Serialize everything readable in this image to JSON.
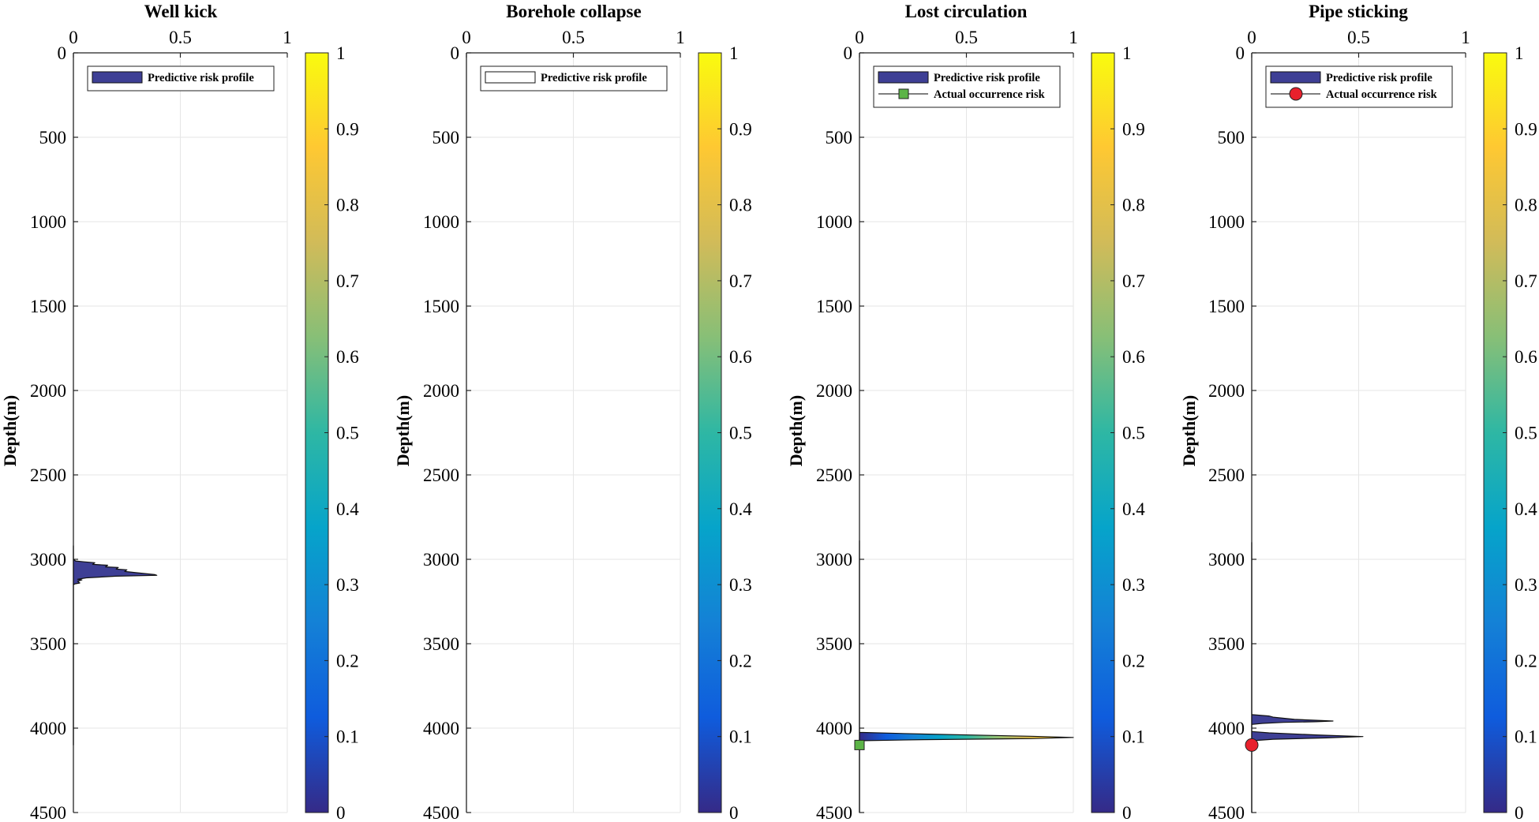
{
  "chart_data": [
    {
      "type": "area",
      "title": "Well kick",
      "xlabel": "",
      "ylabel": "Depth(m)",
      "xlim": [
        0,
        1
      ],
      "ylim": [
        0,
        4500
      ],
      "y_reversed": true,
      "x_axis_position": "top",
      "grid": true,
      "x_ticks": [
        "0",
        "0.5",
        "1"
      ],
      "y_ticks": [
        "0",
        "500",
        "1000",
        "1500",
        "2000",
        "2500",
        "3000",
        "3500",
        "4000",
        "4500"
      ],
      "colorbar": {
        "min": 0,
        "max": 1,
        "ticks": [
          "0",
          "0.1",
          "0.2",
          "0.3",
          "0.4",
          "0.5",
          "0.6",
          "0.7",
          "0.8",
          "0.9",
          "1"
        ]
      },
      "legend": {
        "position": "top",
        "entries": [
          "Predictive risk profile"
        ]
      },
      "series": [
        {
          "name": "Predictive risk profile",
          "kind": "filled-profile",
          "points": [
            [
              0,
              2920
            ],
            [
              0,
              3000
            ],
            [
              0.01,
              3010
            ],
            [
              0.05,
              3015
            ],
            [
              0.1,
              3020
            ],
            [
              0.09,
              3030
            ],
            [
              0.16,
              3035
            ],
            [
              0.15,
              3045
            ],
            [
              0.21,
              3048
            ],
            [
              0.2,
              3058
            ],
            [
              0.25,
              3062
            ],
            [
              0.24,
              3072
            ],
            [
              0.3,
              3080
            ],
            [
              0.38,
              3090
            ],
            [
              0.39,
              3095
            ],
            [
              0.2,
              3100
            ],
            [
              0.06,
              3110
            ],
            [
              0.02,
              3118
            ],
            [
              0.04,
              3122
            ],
            [
              0.02,
              3130
            ],
            [
              0.03,
              3140
            ],
            [
              0.01,
              3145
            ],
            [
              0,
              3150
            ],
            [
              0,
              4100
            ]
          ]
        }
      ]
    },
    {
      "type": "area",
      "title": "Borehole collapse",
      "xlabel": "",
      "ylabel": "Depth(m)",
      "xlim": [
        0,
        1
      ],
      "ylim": [
        0,
        4500
      ],
      "y_reversed": true,
      "x_axis_position": "top",
      "grid": true,
      "x_ticks": [
        "0",
        "0.5",
        "1"
      ],
      "y_ticks": [
        "0",
        "500",
        "1000",
        "1500",
        "2000",
        "2500",
        "3000",
        "3500",
        "4000",
        "4500"
      ],
      "colorbar": {
        "min": 0,
        "max": 1,
        "ticks": [
          "0",
          "0.1",
          "0.2",
          "0.3",
          "0.4",
          "0.5",
          "0.6",
          "0.7",
          "0.8",
          "0.9",
          "1"
        ]
      },
      "legend": {
        "position": "top",
        "entries": [
          "Predictive risk profile"
        ]
      },
      "series": [
        {
          "name": "Predictive risk profile",
          "kind": "filled-profile",
          "points": []
        }
      ]
    },
    {
      "type": "area",
      "title": "Lost circulation",
      "xlabel": "",
      "ylabel": "Depth(m)",
      "xlim": [
        0,
        1
      ],
      "ylim": [
        0,
        4500
      ],
      "y_reversed": true,
      "x_axis_position": "top",
      "grid": true,
      "x_ticks": [
        "0",
        "0.5",
        "1"
      ],
      "y_ticks": [
        "0",
        "500",
        "1000",
        "1500",
        "2000",
        "2500",
        "3000",
        "3500",
        "4000",
        "4500"
      ],
      "colorbar": {
        "min": 0,
        "max": 1,
        "ticks": [
          "0",
          "0.1",
          "0.2",
          "0.3",
          "0.4",
          "0.5",
          "0.6",
          "0.7",
          "0.8",
          "0.9",
          "1"
        ]
      },
      "legend": {
        "position": "top",
        "entries": [
          "Predictive risk profile",
          "Actual occurrence risk"
        ]
      },
      "series": [
        {
          "name": "Predictive risk profile",
          "kind": "filled-profile",
          "points": [
            [
              0,
              2890
            ],
            [
              0,
              4025
            ],
            [
              0.3,
              4035
            ],
            [
              0.8,
              4048
            ],
            [
              1.0,
              4055
            ],
            [
              0.8,
              4062
            ],
            [
              0.3,
              4068
            ],
            [
              0,
              4075
            ],
            [
              0,
              4500
            ]
          ]
        },
        {
          "name": "Actual occurrence risk",
          "kind": "marker",
          "marker": "square",
          "color": "#5cb447",
          "points": [
            [
              0,
              4100
            ]
          ]
        }
      ]
    },
    {
      "type": "area",
      "title": "Pipe sticking",
      "xlabel": "",
      "ylabel": "Depth(m)",
      "xlim": [
        0,
        1
      ],
      "ylim": [
        0,
        4500
      ],
      "y_reversed": true,
      "x_axis_position": "top",
      "grid": true,
      "x_ticks": [
        "0",
        "0.5",
        "1"
      ],
      "y_ticks": [
        "0",
        "500",
        "1000",
        "1500",
        "2000",
        "2500",
        "3000",
        "3500",
        "4000",
        "4500"
      ],
      "colorbar": {
        "min": 0,
        "max": 1,
        "ticks": [
          "0",
          "0.1",
          "0.2",
          "0.3",
          "0.4",
          "0.5",
          "0.6",
          "0.7",
          "0.8",
          "0.9",
          "1"
        ]
      },
      "legend": {
        "position": "top",
        "entries": [
          "Predictive risk profile",
          "Actual occurrence risk"
        ]
      },
      "series": [
        {
          "name": "Predictive risk profile",
          "kind": "filled-profile",
          "points": [
            [
              0,
              2900
            ],
            [
              0,
              3920
            ],
            [
              0.08,
              3928
            ],
            [
              0.1,
              3935
            ],
            [
              0.2,
              3948
            ],
            [
              0.38,
              3958
            ],
            [
              0.3,
              3962
            ],
            [
              0.15,
              3966
            ],
            [
              0.05,
              3972
            ],
            [
              0,
              3978
            ],
            [
              0,
              4020
            ],
            [
              0.08,
              4028
            ],
            [
              0.3,
              4040
            ],
            [
              0.52,
              4050
            ],
            [
              0.35,
              4058
            ],
            [
              0.1,
              4066
            ],
            [
              0,
              4075
            ],
            [
              0,
              4500
            ]
          ]
        },
        {
          "name": "Actual occurrence risk",
          "kind": "marker",
          "marker": "circle",
          "color": "#e8202c",
          "points": [
            [
              0,
              4100
            ]
          ]
        }
      ]
    }
  ],
  "colors": {
    "profile_fill": "#3e3f95",
    "parula": [
      "#352a87",
      "#0f5cdd",
      "#1481d6",
      "#06a4ca",
      "#2eb7a4",
      "#87bf77",
      "#d1bb59",
      "#fec832",
      "#f9fb0e"
    ],
    "grid": "#e6e6e6"
  }
}
